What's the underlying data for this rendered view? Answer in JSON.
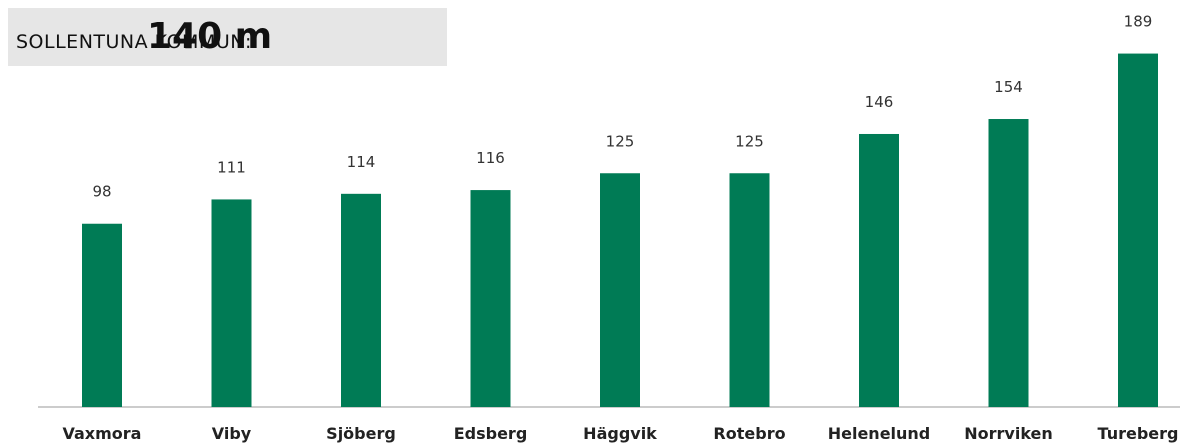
{
  "header": {
    "label": "SOLLENTUNA KOMMUN:",
    "value": "140 m"
  },
  "colors": {
    "bar": "#007b55",
    "header_bg": "#e6e6e6",
    "axis": "#bbbbbb"
  },
  "chart_data": {
    "type": "bar",
    "categories": [
      "Vaxmora",
      "Viby",
      "Sjöberg",
      "Edsberg",
      "Häggvik",
      "Rotebro",
      "Helenelund",
      "Norrviken",
      "Tureberg"
    ],
    "values": [
      98,
      111,
      114,
      116,
      125,
      125,
      146,
      154,
      189
    ],
    "data_labels": [
      "98",
      "111",
      "114",
      "116",
      "125",
      "125",
      "146",
      "154",
      "189"
    ],
    "grid": false,
    "legend": "none"
  }
}
